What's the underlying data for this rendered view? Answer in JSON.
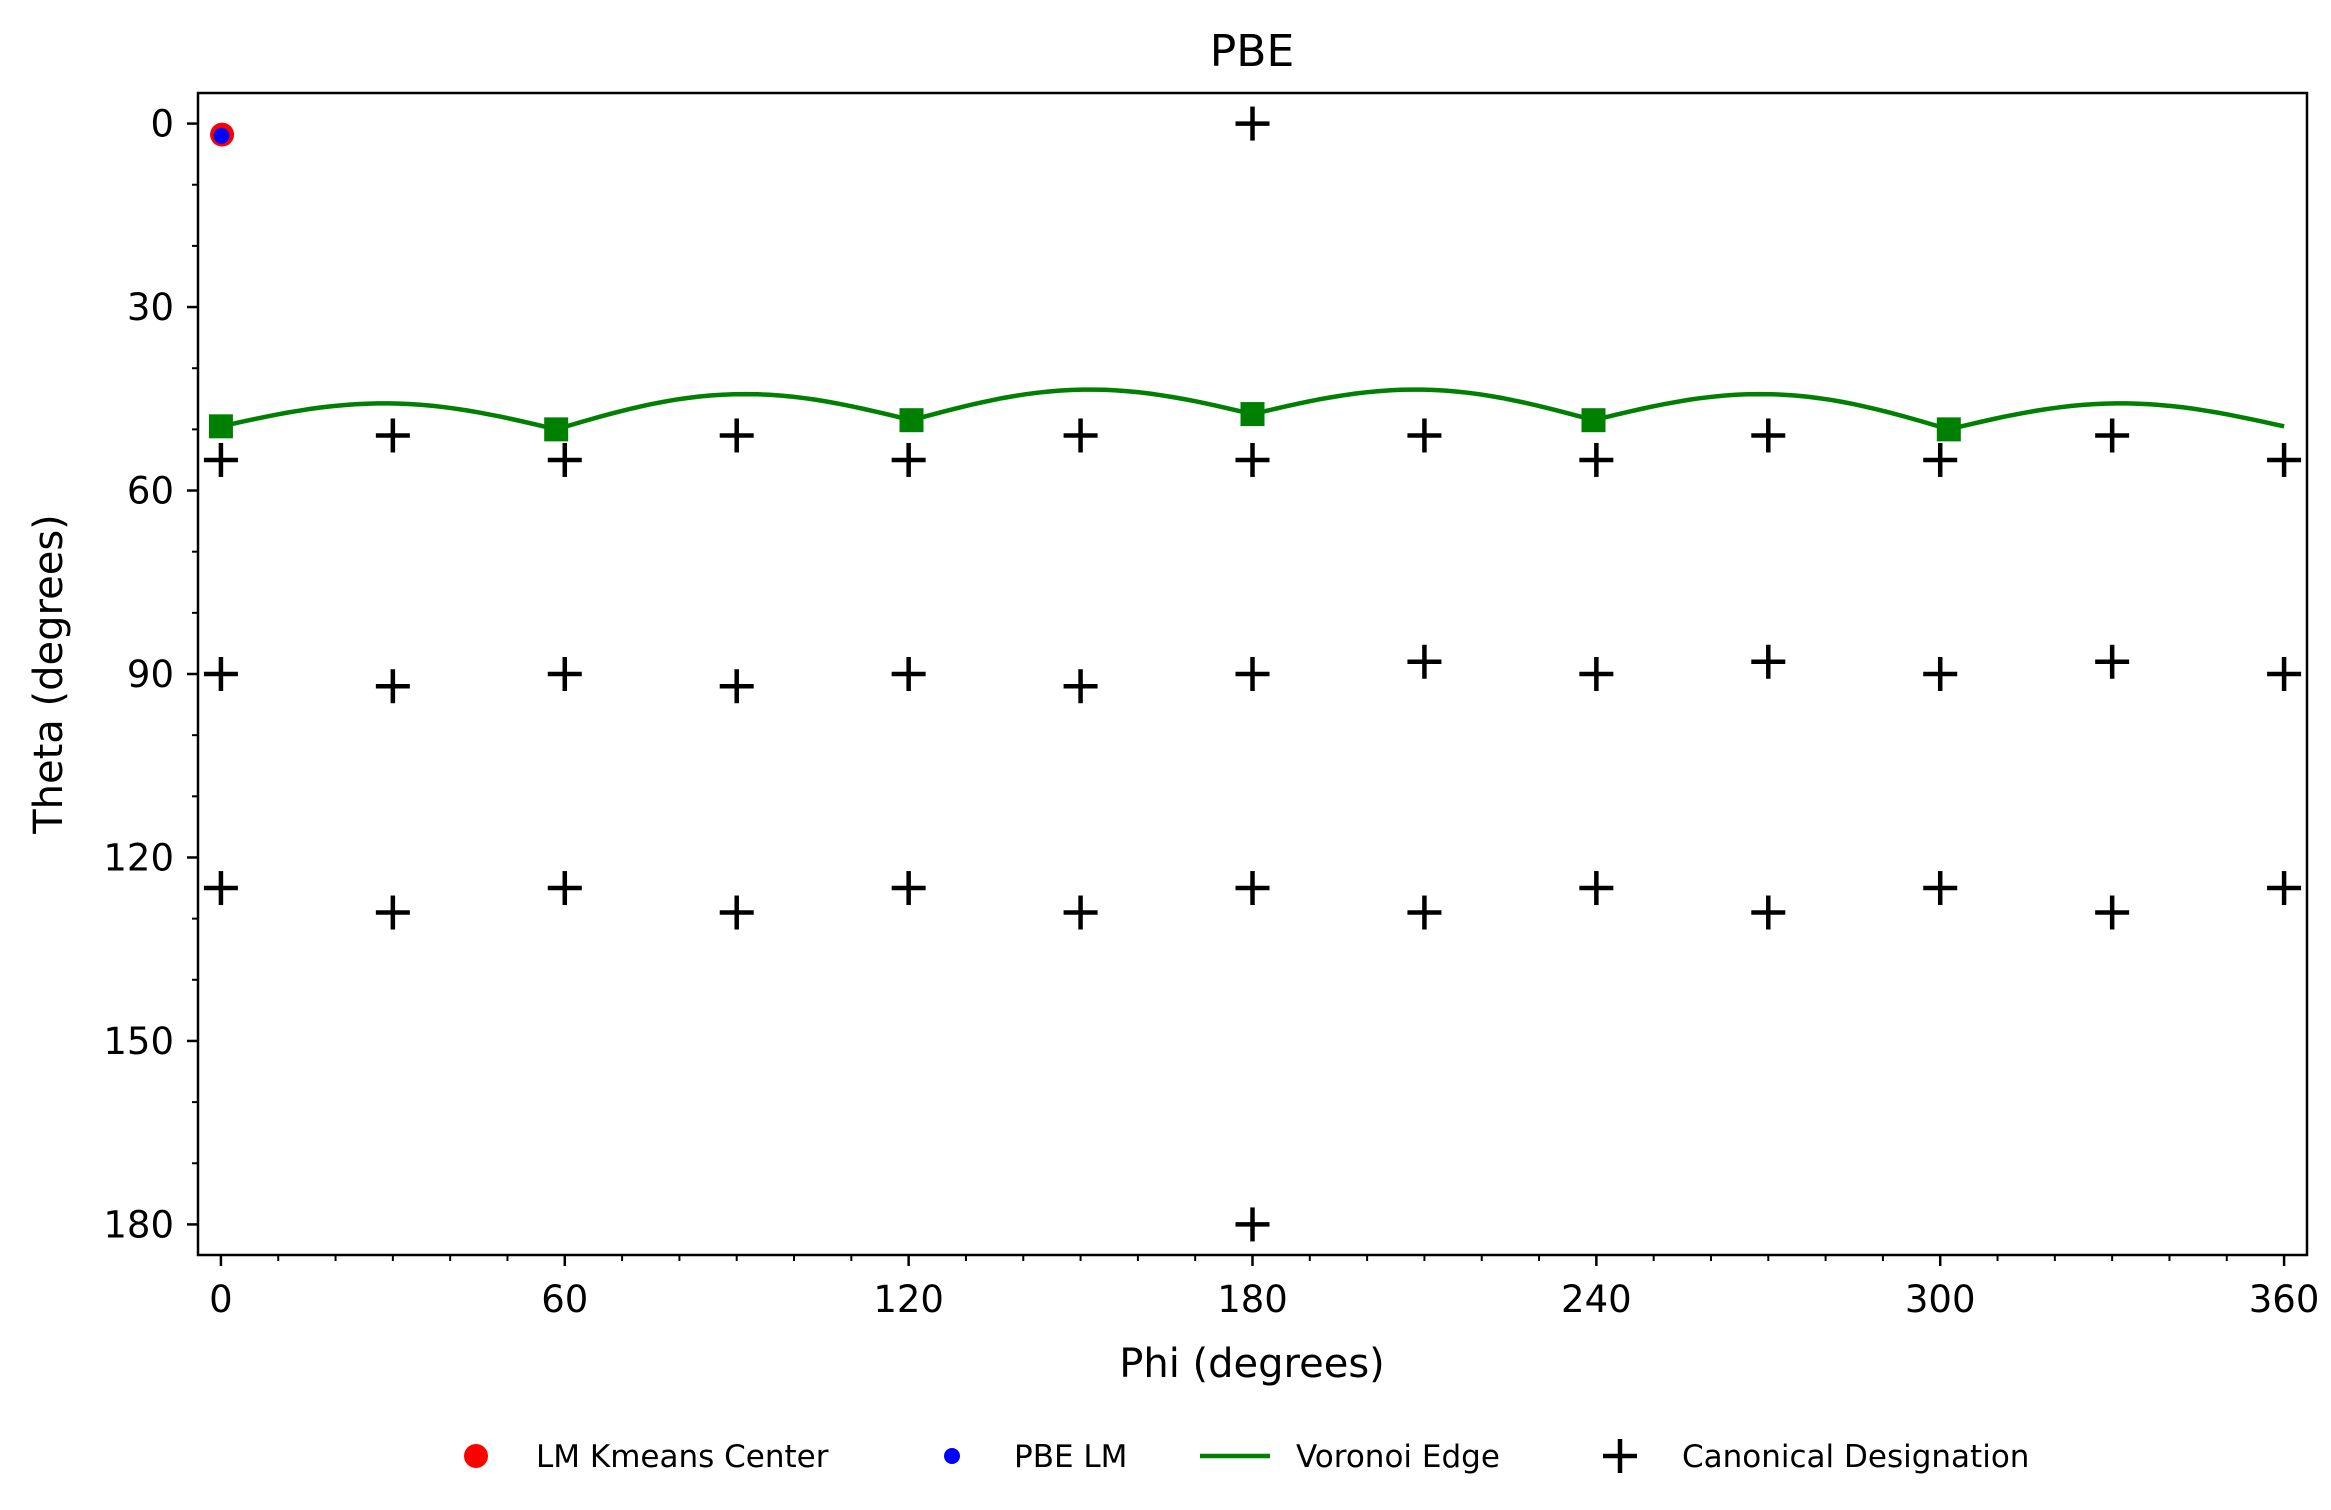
{
  "chart_data": {
    "type": "scatter",
    "title": "PBE",
    "xlabel": "Phi (degrees)",
    "ylabel": "Theta (degrees)",
    "xlim": [
      -4,
      364
    ],
    "ylim": [
      185,
      -5
    ],
    "y_inverted": true,
    "grid": false,
    "x_ticks": [
      0,
      60,
      120,
      180,
      240,
      300,
      360
    ],
    "x_tick_labels": [
      "0",
      "60",
      "120",
      "180",
      "240",
      "300",
      "360"
    ],
    "y_ticks": [
      0,
      30,
      60,
      90,
      120,
      150,
      180
    ],
    "y_tick_labels": [
      "0",
      "30",
      "60",
      "90",
      "120",
      "150",
      "180"
    ],
    "legend_position": "bottom-center",
    "series": [
      {
        "name": "LM Kmeans Center",
        "kind": "points",
        "color": "#ff0000",
        "points": [
          [
            0.2,
            1.8
          ]
        ]
      },
      {
        "name": "PBE LM",
        "kind": "points",
        "color": "#0000ff",
        "points": [
          [
            0.1,
            2.0
          ]
        ]
      },
      {
        "name": "Voronoi Edge",
        "kind": "line",
        "color": "#008000",
        "vertices": [
          [
            0,
            49.5
          ],
          [
            58.5,
            50
          ],
          [
            120.5,
            48.5
          ],
          [
            180,
            47.5
          ],
          [
            239.5,
            48.5
          ],
          [
            301.5,
            50
          ],
          [
            360,
            49.5
          ]
        ],
        "peaks": [
          46,
          45,
          44,
          44,
          45,
          46
        ]
      },
      {
        "name": "Canonical Designation",
        "kind": "plus",
        "color": "#000000",
        "points": [
          [
            180,
            0
          ],
          [
            180,
            180
          ],
          [
            30,
            51
          ],
          [
            90,
            51
          ],
          [
            150,
            51
          ],
          [
            210,
            51
          ],
          [
            270,
            51
          ],
          [
            330,
            51
          ],
          [
            0,
            55
          ],
          [
            60,
            55
          ],
          [
            120,
            55
          ],
          [
            180,
            55
          ],
          [
            240,
            55
          ],
          [
            300,
            55
          ],
          [
            360,
            55
          ],
          [
            0,
            90
          ],
          [
            60,
            90
          ],
          [
            120,
            90
          ],
          [
            180,
            90
          ],
          [
            240,
            90
          ],
          [
            300,
            90
          ],
          [
            360,
            90
          ],
          [
            30,
            92
          ],
          [
            90,
            92
          ],
          [
            150,
            92
          ],
          [
            210,
            88
          ],
          [
            270,
            88
          ],
          [
            330,
            88
          ],
          [
            0,
            125
          ],
          [
            60,
            125
          ],
          [
            120,
            125
          ],
          [
            180,
            125
          ],
          [
            240,
            125
          ],
          [
            300,
            125
          ],
          [
            360,
            125
          ],
          [
            30,
            129
          ],
          [
            90,
            129
          ],
          [
            150,
            129
          ],
          [
            210,
            129
          ],
          [
            270,
            129
          ],
          [
            330,
            129
          ]
        ]
      }
    ]
  }
}
